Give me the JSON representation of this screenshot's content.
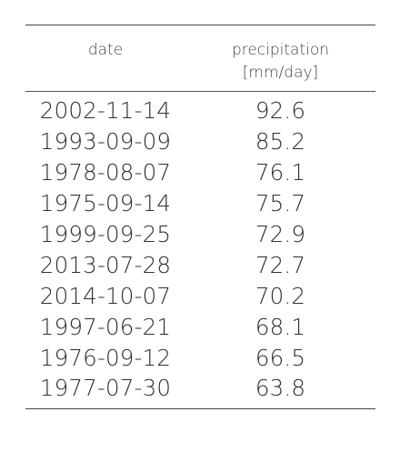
{
  "table": {
    "headers": {
      "date": "date",
      "precipitation": "precipitation",
      "precipitation_unit": "[mm/day]"
    },
    "rows": [
      {
        "date": "2002-11-14",
        "precipitation": "92.6"
      },
      {
        "date": "1993-09-09",
        "precipitation": "85.2"
      },
      {
        "date": "1978-08-07",
        "precipitation": "76.1"
      },
      {
        "date": "1975-09-14",
        "precipitation": "75.7"
      },
      {
        "date": "1999-09-25",
        "precipitation": "72.9"
      },
      {
        "date": "2013-07-28",
        "precipitation": "72.7"
      },
      {
        "date": "2014-10-07",
        "precipitation": "70.2"
      },
      {
        "date": "1997-06-21",
        "precipitation": "68.1"
      },
      {
        "date": "1976-09-12",
        "precipitation": "66.5"
      },
      {
        "date": "1977-07-30",
        "precipitation": "63.8"
      }
    ]
  }
}
